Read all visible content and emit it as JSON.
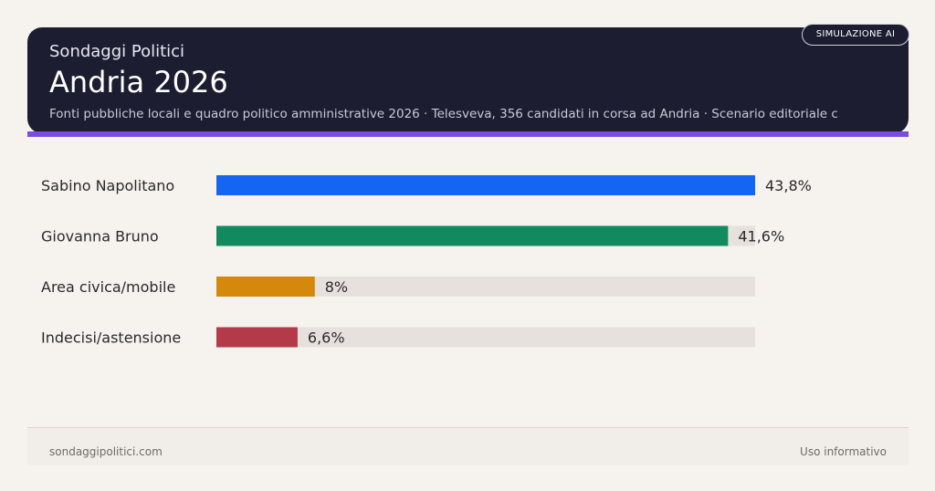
{
  "header": {
    "kicker": "Sondaggi Politici",
    "title": "Andria 2026",
    "subtitle": "Fonti pubbliche locali e quadro politico amministrative 2026 · Telesveva, 356 candidati in corsa ad Andria · Scenario editoriale c",
    "badge": "SIMULAZIONE AI",
    "accent_color": "#7c4ddc",
    "background_color": "#1c1d30"
  },
  "chart_data": {
    "type": "bar",
    "orientation": "horizontal",
    "categories": [
      "Sabino Napolitano",
      "Giovanna Bruno",
      "Area civica/mobile",
      "Indecisi/astensione"
    ],
    "values": [
      43.8,
      41.6,
      8,
      6.6
    ],
    "value_labels": [
      "43,8%",
      "41,6%",
      "8%",
      "6,6%"
    ],
    "colors": [
      "#1565f5",
      "#118a5f",
      "#d4890c",
      "#b43a4a"
    ],
    "track_color": "#e6e1dc",
    "xlim": [
      0,
      43.8
    ],
    "grid": false
  },
  "footer": {
    "source": "sondaggipolitici.com",
    "note": "Uso informativo"
  }
}
